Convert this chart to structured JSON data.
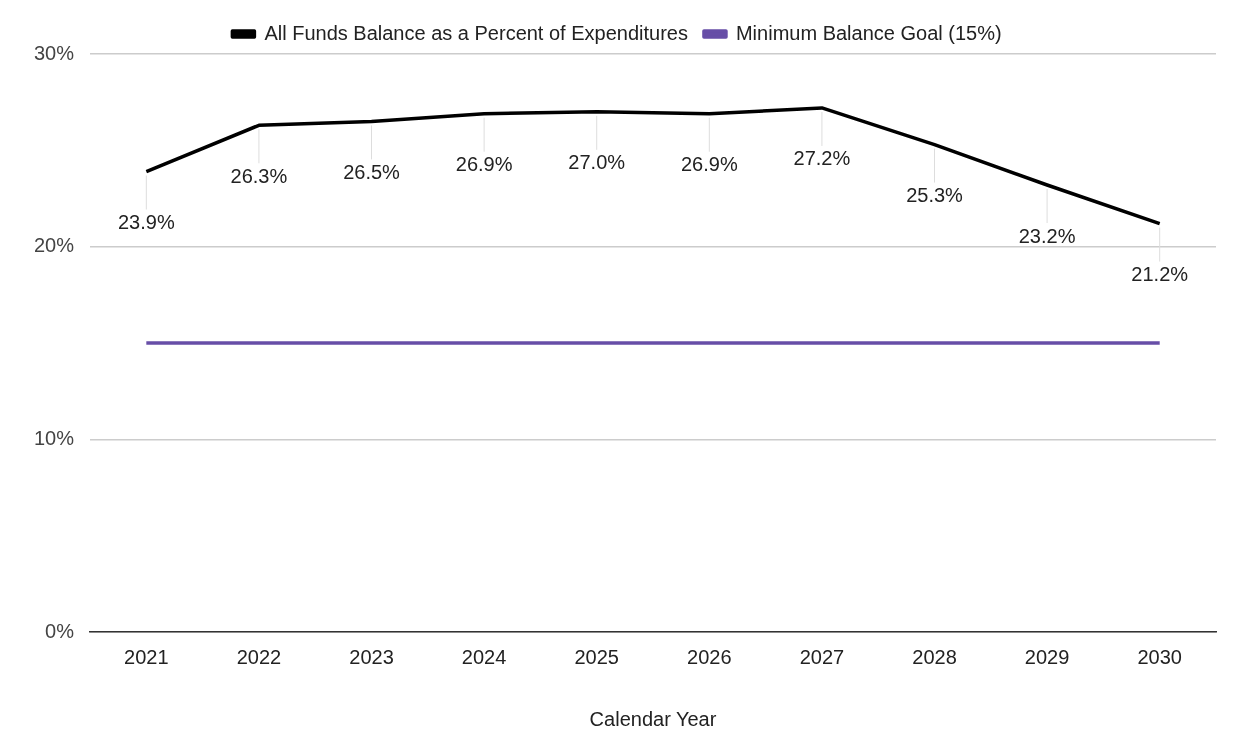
{
  "chart_data": {
    "type": "line",
    "xlabel": "Calendar Year",
    "categories": [
      "2021",
      "2022",
      "2023",
      "2024",
      "2025",
      "2026",
      "2027",
      "2028",
      "2029",
      "2030"
    ],
    "series": [
      {
        "name": "All Funds Balance as a Percent of Expenditures",
        "color": "#000000",
        "values": [
          23.9,
          26.3,
          26.5,
          26.9,
          27.0,
          26.9,
          27.2,
          25.3,
          23.2,
          21.2
        ],
        "value_labels": [
          "23.9%",
          "26.3%",
          "26.5%",
          "26.9%",
          "27.0%",
          "26.9%",
          "27.2%",
          "25.3%",
          "23.2%",
          "21.2%"
        ]
      },
      {
        "name": "Minimum Balance Goal (15%)",
        "color": "#674ea7",
        "values": [
          15,
          15,
          15,
          15,
          15,
          15,
          15,
          15,
          15,
          15
        ]
      }
    ],
    "ylim": [
      0,
      30
    ],
    "yticks": [
      {
        "value": 0,
        "label": "0%"
      },
      {
        "value": 10,
        "label": "10%"
      },
      {
        "value": 20,
        "label": "20%"
      },
      {
        "value": 30,
        "label": "30%"
      }
    ],
    "grid": "y",
    "legend": "top",
    "marker": "none",
    "line_style": "solid"
  }
}
